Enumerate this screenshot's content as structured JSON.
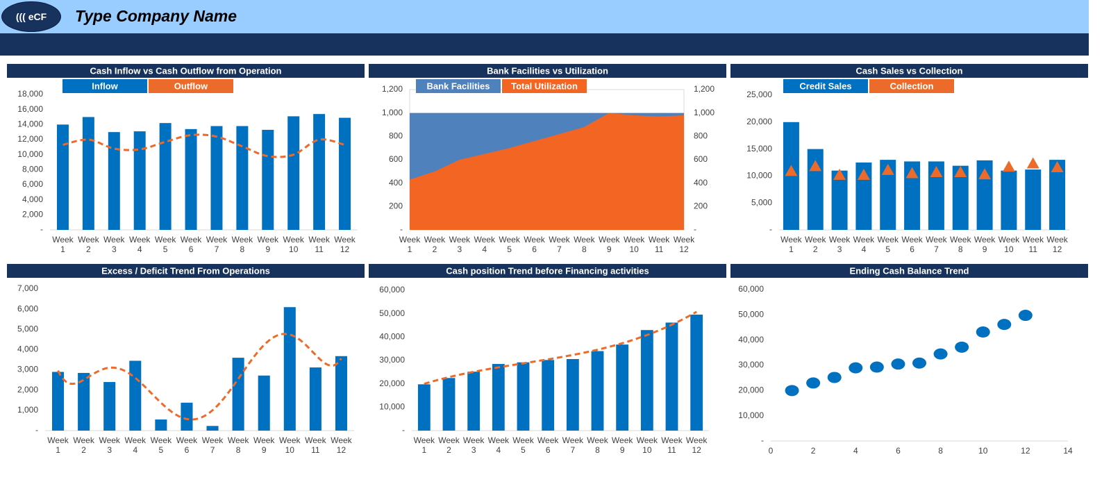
{
  "header": {
    "logo": "((( eCF",
    "company": "Type Company Name"
  },
  "chart_data": [
    {
      "type": "combo",
      "title": "Cash Inflow vs Cash Outflow from Operation",
      "categories": [
        "Week 1",
        "Week 2",
        "Week 3",
        "Week 4",
        "Week 5",
        "Week 6",
        "Week 7",
        "Week 8",
        "Week 9",
        "Week 10",
        "Week 11",
        "Week 12"
      ],
      "series": [
        {
          "name": "Inflow",
          "type": "bar",
          "color": "#0070c0",
          "values": [
            14000,
            15000,
            13000,
            13100,
            14200,
            13400,
            13800,
            13800,
            13300,
            15100,
            15400,
            14900
          ]
        },
        {
          "name": "Outflow",
          "type": "line",
          "color": "#ed6b2a",
          "values": [
            11300,
            12000,
            10800,
            10700,
            11700,
            12600,
            12400,
            11100,
            9800,
            10000,
            12000,
            11300
          ]
        }
      ],
      "ylim": [
        0,
        18000
      ],
      "yticks": [
        {
          "value": 0,
          "label": "-"
        },
        {
          "value": 2000,
          "label": "2,000"
        },
        {
          "value": 4000,
          "label": "4,000"
        },
        {
          "value": 6000,
          "label": "6,000"
        },
        {
          "value": 8000,
          "label": "8,000"
        },
        {
          "value": 10000,
          "label": "10,000"
        },
        {
          "value": 12000,
          "label": "12,000"
        },
        {
          "value": 14000,
          "label": "14,000"
        },
        {
          "value": 16000,
          "label": "16,000"
        },
        {
          "value": 18000,
          "label": "18,000"
        }
      ],
      "legend": "top",
      "grid": false
    },
    {
      "type": "area",
      "title": "Bank Facilities vs Utilization",
      "categories": [
        "Week 1",
        "Week 2",
        "Week 3",
        "Week 4",
        "Week 5",
        "Week 6",
        "Week 7",
        "Week 8",
        "Week 9",
        "Week 10",
        "Week 11",
        "Week 12"
      ],
      "series": [
        {
          "name": "Bank Facilities",
          "type": "area",
          "color": "#4f81bd",
          "values": [
            1000,
            1000,
            1000,
            1000,
            1000,
            1000,
            1000,
            1000,
            1000,
            1000,
            1000,
            1000
          ]
        },
        {
          "name": "Total Utilization",
          "type": "area",
          "color": "#f26522",
          "values": [
            430,
            500,
            600,
            650,
            700,
            760,
            820,
            880,
            1000,
            980,
            970,
            980
          ]
        }
      ],
      "ylim": [
        0,
        1200
      ],
      "yticks": [
        {
          "value": 0,
          "label": "-"
        },
        200,
        400,
        600,
        800,
        {
          "value": 1000,
          "label": "1,000"
        },
        {
          "value": 1200,
          "label": "1,200"
        }
      ],
      "y2lim": [
        0,
        1200
      ],
      "y2ticks": [
        {
          "value": 0,
          "label": "-"
        },
        200,
        400,
        600,
        800,
        {
          "value": 1000,
          "label": "1,000"
        },
        {
          "value": 1200,
          "label": "1,200"
        }
      ],
      "legend": "top",
      "grid": false
    },
    {
      "type": "combo",
      "title": "Cash Sales vs Collection",
      "categories": [
        "Week 1",
        "Week 2",
        "Week 3",
        "Week 4",
        "Week 5",
        "Week 6",
        "Week 7",
        "Week 8",
        "Week 9",
        "Week 10",
        "Week 11",
        "Week 12"
      ],
      "series": [
        {
          "name": "Credit Sales",
          "type": "bar",
          "color": "#0070c0",
          "values": [
            20000,
            15000,
            11000,
            12500,
            13000,
            12700,
            12700,
            11900,
            12900,
            11000,
            11200,
            13000
          ]
        },
        {
          "name": "Collection",
          "type": "marker",
          "color": "#ed6b2a",
          "values": [
            10900,
            11800,
            10200,
            10200,
            11100,
            10500,
            10700,
            10700,
            10300,
            11700,
            12300,
            11600
          ]
        }
      ],
      "ylim": [
        0,
        25000
      ],
      "yticks": [
        {
          "value": 0,
          "label": "-"
        },
        {
          "value": 5000,
          "label": "5,000"
        },
        {
          "value": 10000,
          "label": "10,000"
        },
        {
          "value": 15000,
          "label": "15,000"
        },
        {
          "value": 20000,
          "label": "20,000"
        },
        {
          "value": 25000,
          "label": "25,000"
        }
      ],
      "legend": "top",
      "grid": false
    },
    {
      "type": "bar",
      "title": "Excess / Deficit Trend From Operations",
      "categories": [
        "Week 1",
        "Week 2",
        "Week 3",
        "Week 4",
        "Week 5",
        "Week 6",
        "Week 7",
        "Week 8",
        "Week 9",
        "Week 10",
        "Week 11",
        "Week 12"
      ],
      "values": [
        2900,
        2850,
        2400,
        3450,
        550,
        1380,
        230,
        3600,
        2720,
        6100,
        3120,
        3680
      ],
      "color": "#0070c0",
      "trendline": {
        "type": "polynomial",
        "order": 6,
        "color": "#ed6b2a"
      },
      "ylim": [
        0,
        7000
      ],
      "yticks": [
        {
          "value": 0,
          "label": "-"
        },
        {
          "value": 1000,
          "label": "1,000"
        },
        {
          "value": 2000,
          "label": "2,000"
        },
        {
          "value": 3000,
          "label": "3,000"
        },
        {
          "value": 4000,
          "label": "4,000"
        },
        {
          "value": 5000,
          "label": "5,000"
        },
        {
          "value": 6000,
          "label": "6,000"
        },
        {
          "value": 7000,
          "label": "7,000"
        }
      ],
      "grid": false
    },
    {
      "type": "bar",
      "title": "Cash position Trend before Financing activities",
      "categories": [
        "Week 1",
        "Week 2",
        "Week 3",
        "Week 4",
        "Week 5",
        "Week 6",
        "Week 7",
        "Week 8",
        "Week 9",
        "Week 10",
        "Week 11",
        "Week 12"
      ],
      "values": [
        19800,
        22500,
        25200,
        28500,
        29200,
        30200,
        30600,
        34000,
        36800,
        43000,
        46200,
        49600
      ],
      "color": "#0070c0",
      "trendline": {
        "type": "polynomial",
        "order": 3,
        "color": "#ed6b2a"
      },
      "ylim": [
        0,
        60000
      ],
      "yticks": [
        {
          "value": 0,
          "label": "-"
        },
        {
          "value": 10000,
          "label": "10,000"
        },
        {
          "value": 20000,
          "label": "20,000"
        },
        {
          "value": 30000,
          "label": "30,000"
        },
        {
          "value": 40000,
          "label": "40,000"
        },
        {
          "value": 50000,
          "label": "50,000"
        },
        {
          "value": 60000,
          "label": "60,000"
        }
      ],
      "grid": false
    },
    {
      "type": "scatter",
      "title": "Ending Cash Balance Trend",
      "x": [
        1,
        2,
        3,
        4,
        5,
        6,
        7,
        8,
        9,
        10,
        11,
        12
      ],
      "values": [
        20000,
        23000,
        25200,
        29000,
        29300,
        30500,
        30900,
        34500,
        37200,
        43200,
        46200,
        49800
      ],
      "color": "#0070c0",
      "xlim": [
        0,
        14
      ],
      "xticks": [
        0,
        2,
        4,
        6,
        8,
        10,
        12,
        14
      ],
      "ylim": [
        0,
        60000
      ],
      "yticks": [
        {
          "value": 0,
          "label": "-"
        },
        {
          "value": 10000,
          "label": "10,000"
        },
        {
          "value": 20000,
          "label": "20,000"
        },
        {
          "value": 30000,
          "label": "30,000"
        },
        {
          "value": 40000,
          "label": "40,000"
        },
        {
          "value": 50000,
          "label": "50,000"
        },
        {
          "value": 60000,
          "label": "60,000"
        }
      ],
      "grid": false
    }
  ]
}
